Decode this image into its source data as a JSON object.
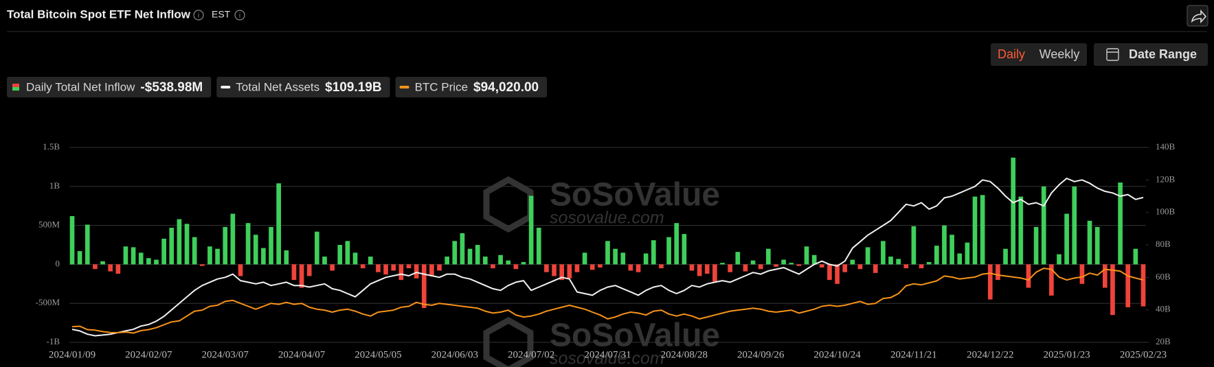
{
  "header": {
    "title": "Total Bitcoin Spot ETF Net Inflow",
    "timezone": "EST"
  },
  "controls": {
    "daily": "Daily",
    "weekly": "Weekly",
    "date_range": "Date Range"
  },
  "watermark": {
    "brand": "SoSoValue",
    "url": "sosovalue.com"
  },
  "chart_data": {
    "type": "bar",
    "categories": [
      "2024/01/09",
      null,
      null,
      null,
      null,
      null,
      null,
      null,
      null,
      null,
      "2024/02/07",
      null,
      null,
      null,
      null,
      null,
      null,
      null,
      null,
      null,
      "2024/03/07",
      null,
      null,
      null,
      null,
      null,
      null,
      null,
      null,
      null,
      "2024/04/07",
      null,
      null,
      null,
      null,
      null,
      null,
      null,
      null,
      null,
      "2024/05/05",
      null,
      null,
      null,
      null,
      null,
      null,
      null,
      null,
      null,
      "2024/06/03",
      null,
      null,
      null,
      null,
      null,
      null,
      null,
      null,
      null,
      "2024/07/02",
      null,
      null,
      null,
      null,
      null,
      null,
      null,
      null,
      null,
      "2024/07/31",
      null,
      null,
      null,
      null,
      null,
      null,
      null,
      null,
      null,
      "2024/08/28",
      null,
      null,
      null,
      null,
      null,
      null,
      null,
      null,
      null,
      "2024/09/26",
      null,
      null,
      null,
      null,
      null,
      null,
      null,
      null,
      null,
      "2024/10/24",
      null,
      null,
      null,
      null,
      null,
      null,
      null,
      null,
      null,
      "2024/11/21",
      null,
      null,
      null,
      null,
      null,
      null,
      null,
      null,
      null,
      "2024/12/22",
      null,
      null,
      null,
      null,
      null,
      null,
      null,
      null,
      null,
      "2025/01/23",
      null,
      null,
      null,
      null,
      null,
      null,
      null,
      null,
      null,
      "2025/02/23"
    ],
    "ylim": [
      -1000,
      1500
    ],
    "yticks": [
      {
        "value": -1000,
        "label": "-1B"
      },
      {
        "value": -500,
        "label": "-500M"
      },
      0,
      {
        "value": 500,
        "label": "500M"
      },
      {
        "value": 1000,
        "label": "1B"
      },
      {
        "value": 1500,
        "label": "1.5B"
      }
    ],
    "y2lim": [
      20,
      140
    ],
    "y2ticks": [
      {
        "value": 20,
        "label": "20B"
      },
      {
        "value": 40,
        "label": "40B"
      },
      {
        "value": 60,
        "label": "60B"
      },
      {
        "value": 80,
        "label": "80B"
      },
      {
        "value": 100,
        "label": "100B"
      },
      {
        "value": 120,
        "label": "120B"
      },
      {
        "value": 140,
        "label": "140B"
      }
    ],
    "y3lim": [
      30000,
      230000
    ],
    "grid": true,
    "series": [
      {
        "name": "Daily Total Net Inflow",
        "type": "bar",
        "color": "#3fcf5b",
        "negative_color": "#f0433a",
        "legend_value": "-$538.98M",
        "values": [
          620,
          170,
          510,
          -60,
          40,
          -90,
          -120,
          230,
          220,
          150,
          80,
          60,
          330,
          470,
          580,
          520,
          350,
          -20,
          230,
          200,
          480,
          650,
          -150,
          530,
          380,
          210,
          480,
          1040,
          180,
          -200,
          -300,
          -150,
          420,
          100,
          -80,
          250,
          300,
          150,
          -50,
          100,
          -100,
          -130,
          -80,
          -200,
          -50,
          -180,
          -560,
          -150,
          -80,
          100,
          300,
          400,
          200,
          250,
          100,
          -50,
          120,
          50,
          -60,
          30,
          880,
          470,
          -100,
          -150,
          -200,
          -180,
          -100,
          150,
          -70,
          -40,
          300,
          200,
          150,
          -80,
          -100,
          140,
          310,
          -50,
          350,
          530,
          390,
          -80,
          -150,
          -120,
          -220,
          20,
          -100,
          160,
          -90,
          50,
          -60,
          200,
          -30,
          60,
          20,
          -20,
          230,
          120,
          -40,
          -200,
          -250,
          -100,
          60,
          -60,
          220,
          -110,
          300,
          100,
          70,
          -50,
          490,
          -50,
          30,
          240,
          500,
          380,
          140,
          280,
          870,
          890,
          -450,
          -200,
          200,
          1370,
          870,
          -300,
          480,
          1000,
          -400,
          130,
          650,
          1000,
          -250,
          560,
          480,
          -300,
          -650,
          1050,
          -550,
          200,
          -538.98
        ]
      },
      {
        "name": "Total Net Assets",
        "type": "line",
        "axis": "y2",
        "color": "#f2f2f2",
        "legend_value": "$109.19B",
        "values": [
          28,
          27,
          25,
          24,
          24.5,
          25,
          26,
          27,
          28,
          30,
          31,
          33,
          36,
          40,
          44,
          48,
          52,
          55,
          57,
          59,
          60,
          62,
          58,
          57,
          56,
          57,
          55,
          56,
          57,
          55,
          55,
          54,
          55,
          56,
          53,
          52,
          50,
          48,
          52,
          56,
          58,
          60,
          61,
          62,
          61,
          63,
          62,
          61,
          60,
          62,
          62,
          60,
          59,
          57,
          55,
          53,
          52,
          55,
          57,
          58,
          52,
          54,
          56,
          58,
          60,
          59,
          51,
          50,
          49,
          52,
          54,
          55,
          53,
          51,
          49,
          52,
          54,
          55,
          52,
          50,
          52,
          55,
          54,
          56,
          57,
          58,
          57,
          59,
          61,
          63,
          62,
          64,
          65,
          66,
          64,
          62,
          65,
          68,
          70,
          68,
          67,
          70,
          78,
          82,
          86,
          89,
          92,
          95,
          100,
          105,
          104,
          106,
          102,
          104,
          109,
          110,
          112,
          114,
          116,
          120,
          119,
          115,
          110,
          106,
          108,
          105,
          106,
          104,
          112,
          117,
          121,
          119,
          120,
          118,
          115,
          113,
          112,
          110,
          111,
          108,
          109.19
        ]
      },
      {
        "name": "BTC Price",
        "type": "line",
        "axis": "y3",
        "color": "#f7931a",
        "legend_value": "$94,020.00",
        "values": [
          46000,
          46500,
          43000,
          42500,
          41000,
          40000,
          39900,
          40500,
          39500,
          42000,
          43000,
          45000,
          48000,
          51000,
          52000,
          57000,
          62000,
          63000,
          67000,
          68000,
          72000,
          73000,
          70000,
          67000,
          64000,
          67000,
          70000,
          69000,
          71000,
          69000,
          70000,
          66000,
          64000,
          63000,
          61000,
          63000,
          64000,
          62000,
          59000,
          57000,
          61000,
          62000,
          63000,
          66000,
          67000,
          71000,
          69000,
          68000,
          70000,
          69000,
          68000,
          67000,
          66000,
          65000,
          62000,
          60000,
          61000,
          63000,
          58000,
          56000,
          57000,
          59000,
          62000,
          64000,
          66000,
          68000,
          66000,
          64000,
          61000,
          58000,
          54000,
          56000,
          59000,
          61000,
          60000,
          58000,
          62000,
          63000,
          59000,
          57000,
          59000,
          57000,
          54000,
          56000,
          58000,
          60000,
          62000,
          63000,
          64000,
          65000,
          64000,
          62000,
          61000,
          62000,
          63000,
          60000,
          62000,
          64000,
          67000,
          68000,
          67000,
          68000,
          70000,
          72000,
          69000,
          70000,
          75000,
          76000,
          80000,
          88000,
          90000,
          89000,
          91000,
          93000,
          98000,
          97000,
          95000,
          96000,
          97000,
          100000,
          101000,
          99000,
          98000,
          97000,
          96000,
          94000,
          102000,
          106000,
          105000,
          97000,
          94000,
          96000,
          97000,
          101000,
          99000,
          105000,
          104000,
          103000,
          98000,
          96000,
          94020
        ]
      }
    ]
  }
}
